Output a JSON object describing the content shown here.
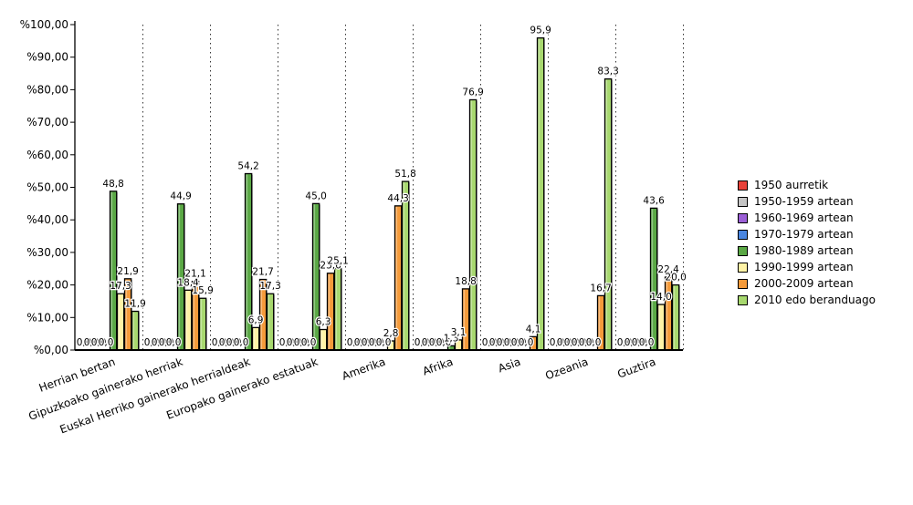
{
  "chart_data": {
    "type": "bar",
    "title": "",
    "xlabel": "",
    "ylabel": "",
    "ylim": [
      0,
      100
    ],
    "yticks": [
      "%0,00",
      "%10,00",
      "%20,00",
      "%30,00",
      "%40,00",
      "%50,00",
      "%60,00",
      "%70,00",
      "%80,00",
      "%90,00",
      "%100,00"
    ],
    "grid": "vertical dotted separators between categories",
    "legend_position": "right",
    "categories": [
      "Herrian bertan",
      "Gipuzkoako gainerako herriak",
      "Euskal Herriko gainerako herrialdeak",
      "Europako gainerako estatuak",
      "Amerika",
      "Afrika",
      "Asia",
      "Ozeania",
      "Guztira"
    ],
    "series": [
      {
        "name": "1950 aurretik",
        "color": "#e8423a",
        "values": [
          0.0,
          0.0,
          0.0,
          0.0,
          0.0,
          0.0,
          0.0,
          0.0,
          0.0
        ],
        "labels": [
          "0,0",
          "0,0",
          "0,0",
          "0,0",
          "0,0",
          "0,0",
          "0,0",
          "0,0",
          "0,0"
        ]
      },
      {
        "name": "1950-1959 artean",
        "color": "#c4c4c4",
        "values": [
          0.0,
          0.0,
          0.0,
          0.0,
          0.0,
          0.0,
          0.0,
          0.0,
          0.0
        ],
        "labels": [
          "0,0",
          "0,0",
          "0,0",
          "0,0",
          "0,0",
          "0,0",
          "0,0",
          "0,0",
          "0,0"
        ]
      },
      {
        "name": "1960-1969 artean",
        "color": "#9b5fd6",
        "values": [
          0.0,
          0.0,
          0.0,
          0.0,
          0.0,
          0.0,
          0.0,
          0.0,
          0.0
        ],
        "labels": [
          "0,0",
          "0,0",
          "0,0",
          "0,0",
          "0,0",
          "0,0",
          "0,0",
          "0,0",
          "0,0"
        ]
      },
      {
        "name": "1970-1979 artean",
        "color": "#4a86e0",
        "values": [
          0.0,
          0.0,
          0.0,
          0.0,
          0.0,
          0.0,
          0.0,
          0.0,
          0.0
        ],
        "labels": [
          "0,0",
          "0,0",
          "0,0",
          "0,0",
          "0,0",
          "0,0",
          "0,0",
          "0,0",
          "0,0"
        ]
      },
      {
        "name": "1980-1989 artean",
        "color": "#5aa845",
        "values": [
          48.8,
          44.9,
          54.2,
          45.0,
          0.0,
          1.3,
          0.0,
          0.0,
          43.6
        ],
        "labels": [
          "48,8",
          "44,9",
          "54,2",
          "45,0",
          "0,0",
          "1,3",
          "0,0",
          "0,0",
          "43,6"
        ]
      },
      {
        "name": "1990-1999 artean",
        "color": "#fff3a6",
        "values": [
          17.3,
          18.4,
          6.9,
          6.3,
          2.8,
          3.1,
          0.0,
          0.0,
          14.0
        ],
        "labels": [
          "17,3",
          "18,4",
          "6,9",
          "6,3",
          "2,8",
          "3,1",
          "0,0",
          "0,0",
          "14,0"
        ]
      },
      {
        "name": "2000-2009 artean",
        "color": "#f59a3a",
        "values": [
          21.9,
          21.1,
          21.7,
          23.6,
          44.3,
          18.8,
          4.1,
          16.7,
          22.4
        ],
        "labels": [
          "21,9",
          "21,1",
          "21,7",
          "23,6",
          "44,3",
          "18,8",
          "4,1",
          "16,7",
          "22,4"
        ]
      },
      {
        "name": "2010 edo beranduago",
        "color": "#a7d86e",
        "values": [
          11.9,
          15.9,
          17.3,
          25.1,
          51.8,
          76.9,
          95.9,
          83.3,
          20.0
        ],
        "labels": [
          "11,9",
          "15,9",
          "17,3",
          "25,1",
          "51,8",
          "76,9",
          "95,9",
          "83,3",
          "20,0"
        ]
      }
    ]
  }
}
